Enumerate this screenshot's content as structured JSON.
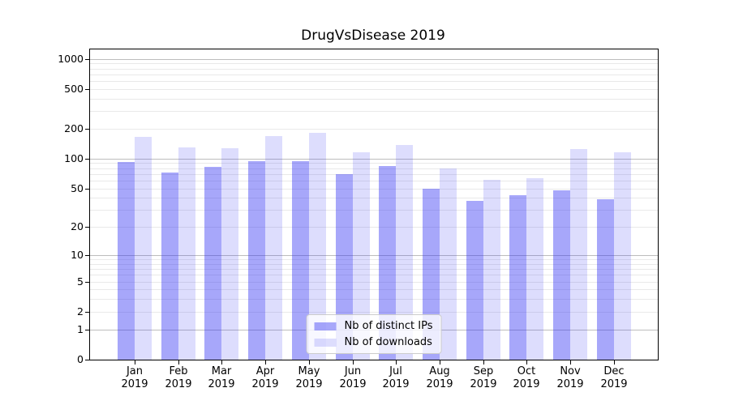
{
  "figure": {
    "title": "DrugVsDisease 2019"
  },
  "chart_data": {
    "type": "bar",
    "title": "DrugVsDisease 2019",
    "categories": [
      "Jan",
      "Feb",
      "Mar",
      "Apr",
      "May",
      "Jun",
      "Jul",
      "Aug",
      "Sep",
      "Oct",
      "Nov",
      "Dec"
    ],
    "year_label": "2019",
    "series": [
      {
        "name": "Nb of distinct IPs",
        "color": "rgba(51,51,243,0.43)",
        "values": [
          93,
          73,
          82,
          94,
          94,
          70,
          84,
          50,
          37,
          43,
          48,
          39
        ]
      },
      {
        "name": "Nb of downloads",
        "color": "rgba(51,51,243,0.17)",
        "values": [
          165,
          130,
          128,
          170,
          181,
          115,
          138,
          80,
          61,
          63,
          125,
          115
        ]
      }
    ],
    "xlabel": "",
    "ylabel": "",
    "yscale": "symlog: y = log10(value+1)",
    "ylim": [
      0,
      1240
    ],
    "y_tick_values": [
      0,
      1,
      2,
      5,
      10,
      20,
      50,
      100,
      200,
      500,
      1000
    ],
    "y_tick_labels": [
      "0",
      "1",
      "2",
      "5",
      "10",
      "20",
      "50",
      "100",
      "200",
      "500",
      "1000"
    ],
    "grid": {
      "orientation": "horizontal",
      "major_lines": [
        1,
        10,
        100,
        1000
      ],
      "minor_lines": [
        2,
        3,
        4,
        5,
        6,
        7,
        8,
        9,
        20,
        30,
        40,
        50,
        60,
        70,
        80,
        90,
        200,
        300,
        400,
        500,
        600,
        700,
        800,
        900
      ],
      "major_color": "#bdbdbd",
      "minor_color": "#e9e9e9"
    },
    "legend_position": "lower center"
  }
}
